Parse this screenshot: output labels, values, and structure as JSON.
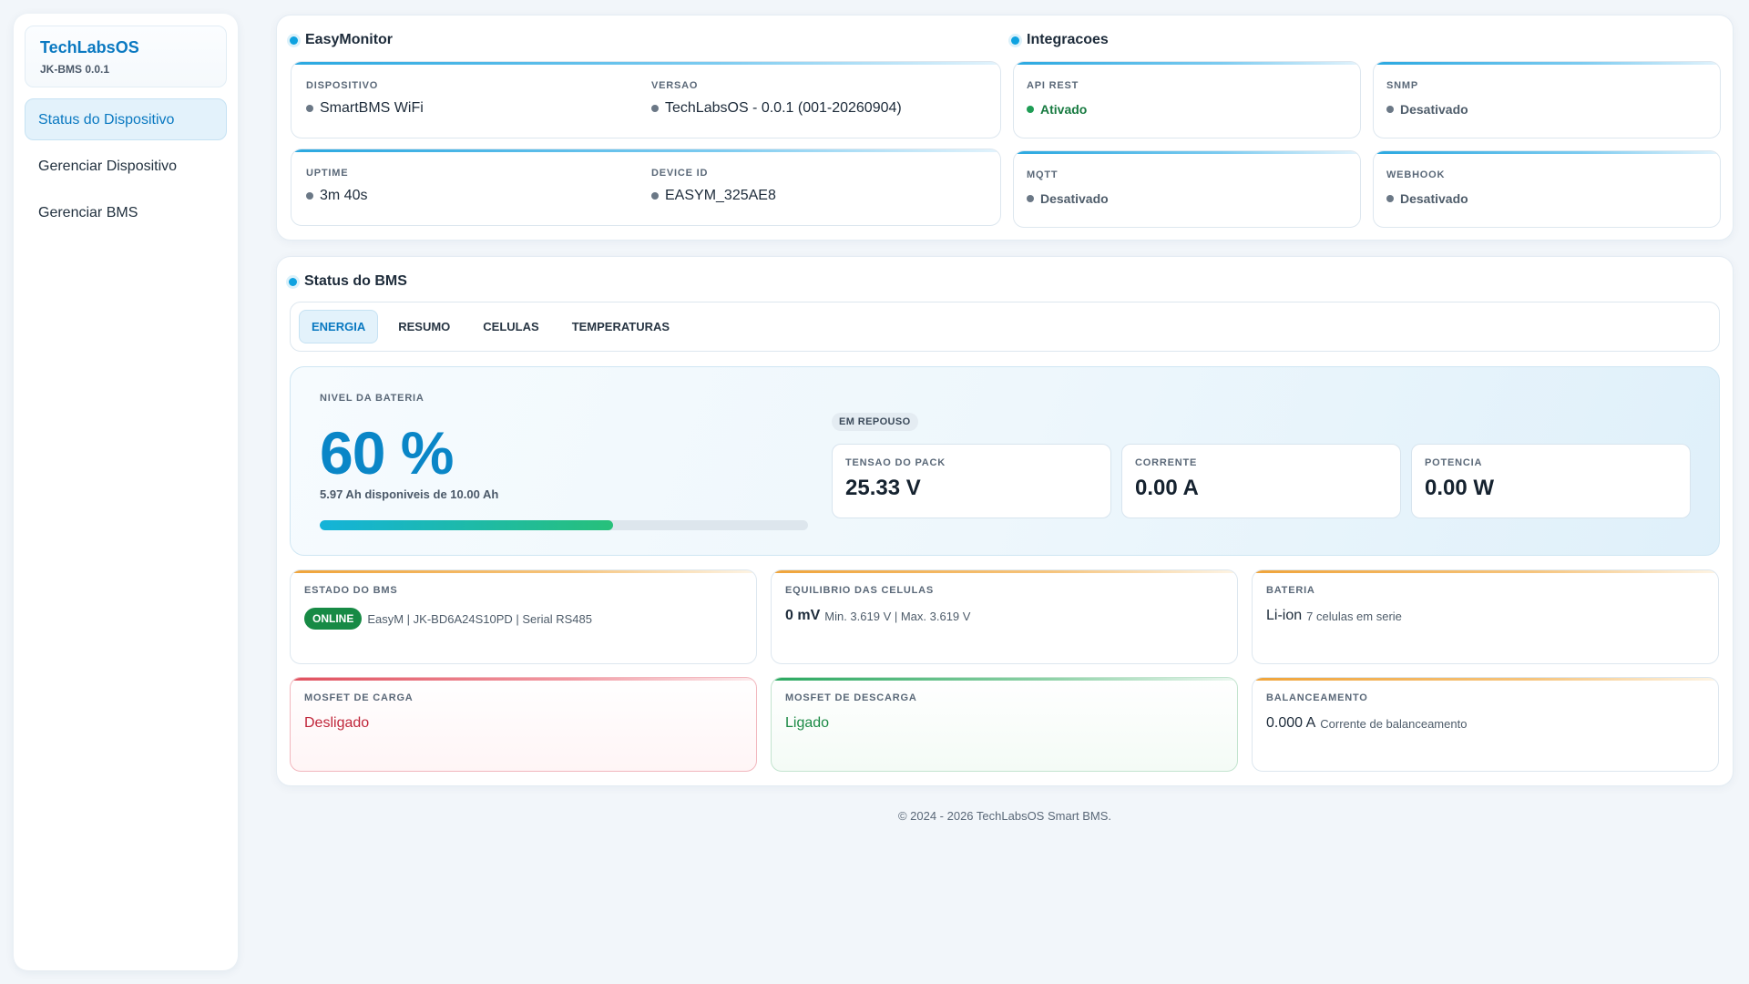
{
  "sidebar": {
    "brand_name": "TechLabsOS",
    "brand_version": "JK-BMS 0.0.1",
    "items": [
      {
        "label": "Status do Dispositivo"
      },
      {
        "label": "Gerenciar Dispositivo"
      },
      {
        "label": "Gerenciar BMS"
      }
    ]
  },
  "easymonitor": {
    "title": "EasyMonitor",
    "dispositivo_label": "DISPOSITIVO",
    "dispositivo_value": "SmartBMS WiFi",
    "versao_label": "VERSAO",
    "versao_value": "TechLabsOS - 0.0.1 (001-20260904)",
    "uptime_label": "UPTIME",
    "uptime_value": "3m 40s",
    "device_id_label": "DEVICE ID",
    "device_id_value": "EASYM_325AE8"
  },
  "integracoes": {
    "title": "Integracoes",
    "api_rest_label": "API REST",
    "api_rest_status": "Ativado",
    "snmp_label": "SNMP",
    "snmp_status": "Desativado",
    "mqtt_label": "MQTT",
    "mqtt_status": "Desativado",
    "webhook_label": "WEBHOOK",
    "webhook_status": "Desativado"
  },
  "bms": {
    "title": "Status do BMS",
    "tabs": [
      {
        "label": "ENERGIA"
      },
      {
        "label": "RESUMO"
      },
      {
        "label": "CELULAS"
      },
      {
        "label": "TEMPERATURAS"
      }
    ],
    "energy": {
      "level_label": "NIVEL DA BATERIA",
      "level_value": "60 %",
      "level_fraction": 0.6,
      "available_text": "5.97 Ah disponiveis de 10.00 Ah",
      "state_pill": "EM REPOUSO",
      "pack_voltage_label": "TENSAO DO PACK",
      "pack_voltage_value": "25.33 V",
      "current_label": "CORRENTE",
      "current_value": "0.00 A",
      "power_label": "POTENCIA",
      "power_value": "0.00 W"
    },
    "estado": {
      "label": "ESTADO DO BMS",
      "badge": "ONLINE",
      "detail": "EasyM | JK-BD6A24S10PD | Serial RS485"
    },
    "equilibrio": {
      "label": "EQUILIBRIO DAS CELULAS",
      "value": "0 mV",
      "detail": "Min. 3.619 V | Max. 3.619 V"
    },
    "bateria": {
      "label": "BATERIA",
      "value": "Li-ion",
      "detail": "7 celulas em serie"
    },
    "mosfet_carga": {
      "label": "MOSFET DE CARGA",
      "value": "Desligado"
    },
    "mosfet_descarga": {
      "label": "MOSFET DE DESCARGA",
      "value": "Ligado"
    },
    "balanceamento": {
      "label": "BALANCEAMENTO",
      "value": "0.000 A",
      "detail": "Corrente de balanceamento"
    }
  },
  "footer": "© 2024 - 2026 TechLabsOS Smart BMS.",
  "colors": {
    "accent": "#0a79c1",
    "online": "#178a45",
    "danger": "#c0263a",
    "success": "#1b8a45"
  }
}
